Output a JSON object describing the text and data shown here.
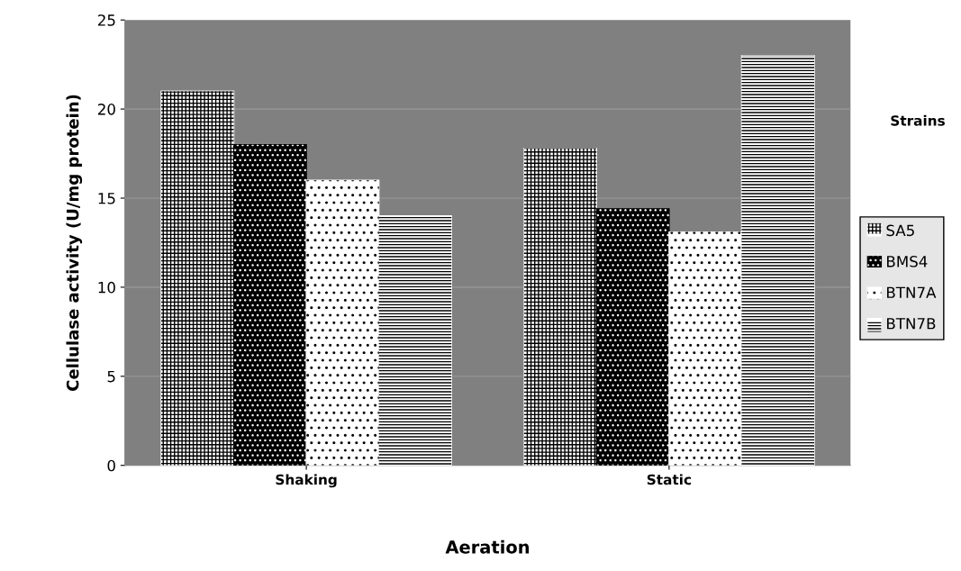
{
  "chart_data": {
    "type": "bar",
    "xlabel": "Aeration",
    "ylabel": "Cellulase activity (U/mg protein)",
    "legend_title": "Strains",
    "categories": [
      "Shaking",
      "Static"
    ],
    "series": [
      {
        "name": "SA5",
        "color": "#ffffff",
        "values": [
          21.0,
          17.8
        ]
      },
      {
        "name": "BMS4",
        "color": "#000000",
        "values": [
          18.0,
          14.4
        ]
      },
      {
        "name": "BTN7A",
        "color": "#ffffff",
        "values": [
          16.0,
          13.1
        ]
      },
      {
        "name": "BTN7B",
        "color": "#ffffff",
        "values": [
          14.0,
          23.0
        ]
      }
    ],
    "ylim": [
      0,
      25
    ],
    "yticks": [
      0,
      5,
      10,
      15,
      20,
      25
    ],
    "grid": "y",
    "legend": "right"
  }
}
